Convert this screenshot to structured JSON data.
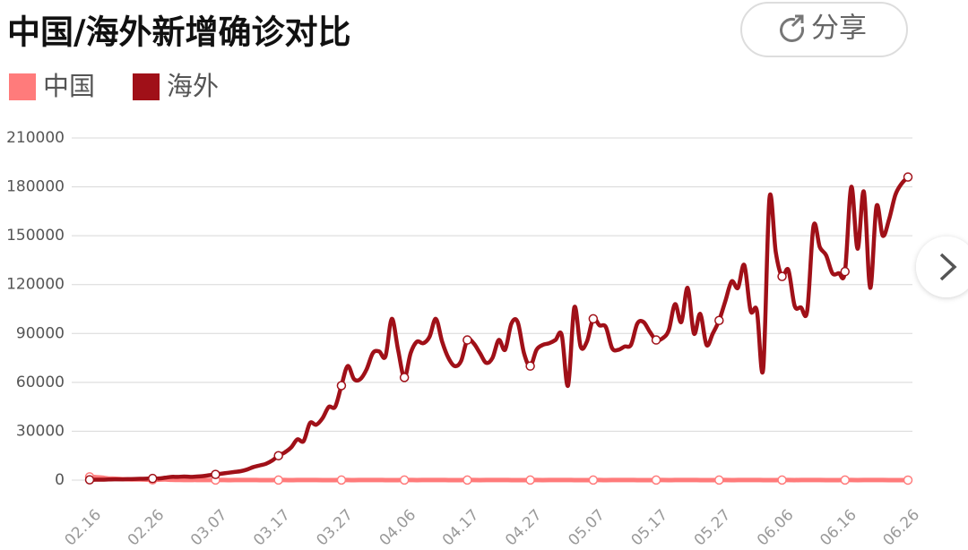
{
  "chart_data": {
    "type": "line",
    "title": "中国/海外新增确诊对比",
    "categories": [
      "02.16",
      null,
      null,
      null,
      null,
      null,
      null,
      null,
      null,
      null,
      "02.26",
      null,
      null,
      null,
      null,
      null,
      null,
      null,
      null,
      null,
      "03.07",
      null,
      null,
      null,
      null,
      null,
      null,
      null,
      null,
      null,
      "03.17",
      null,
      null,
      null,
      null,
      null,
      null,
      null,
      null,
      null,
      "03.27",
      null,
      null,
      null,
      null,
      null,
      null,
      null,
      null,
      null,
      "04.06",
      null,
      null,
      null,
      null,
      null,
      null,
      null,
      null,
      null,
      "04.17",
      null,
      null,
      null,
      null,
      null,
      null,
      null,
      null,
      null,
      "04.27",
      null,
      null,
      null,
      null,
      null,
      null,
      null,
      null,
      null,
      "05.07",
      null,
      null,
      null,
      null,
      null,
      null,
      null,
      null,
      null,
      "05.17",
      null,
      null,
      null,
      null,
      null,
      null,
      null,
      null,
      null,
      "05.27",
      null,
      null,
      null,
      null,
      null,
      null,
      null,
      null,
      null,
      "06.06",
      null,
      null,
      null,
      null,
      null,
      null,
      null,
      null,
      null,
      "06.16",
      null,
      null,
      null,
      null,
      null,
      null,
      null,
      null,
      null,
      "06.26"
    ],
    "series": [
      {
        "name": "中国",
        "color": "#ff7b7b",
        "values": [
          2000,
          1800,
          1500,
          1000,
          900,
          600,
          500,
          400,
          400,
          300,
          200,
          300,
          400,
          200,
          150,
          100,
          100,
          100,
          50,
          50,
          50,
          40,
          30,
          40,
          60,
          50,
          40,
          30,
          20,
          30,
          50,
          40,
          30,
          40,
          60,
          50,
          40,
          30,
          20,
          30,
          50,
          40,
          30,
          40,
          60,
          50,
          40,
          30,
          20,
          30,
          50,
          40,
          30,
          40,
          60,
          50,
          40,
          30,
          20,
          30,
          50,
          40,
          30,
          40,
          60,
          50,
          40,
          30,
          20,
          30,
          50,
          40,
          30,
          40,
          60,
          50,
          40,
          30,
          20,
          30,
          50,
          40,
          30,
          40,
          60,
          50,
          40,
          30,
          20,
          30,
          50,
          40,
          30,
          40,
          60,
          50,
          40,
          30,
          20,
          30,
          50,
          40,
          30,
          40,
          60,
          50,
          40,
          30,
          20,
          30,
          50,
          40,
          30,
          40,
          60,
          50,
          40,
          30,
          20,
          30,
          50,
          40,
          30,
          40,
          60,
          50,
          40,
          30,
          20,
          30,
          20
        ]
      },
      {
        "name": "海外",
        "color": "#a01018",
        "values": [
          200,
          300,
          300,
          400,
          500,
          500,
          600,
          700,
          800,
          900,
          1000,
          1000,
          1500,
          2000,
          2000,
          2200,
          2000,
          2200,
          2500,
          3000,
          3500,
          4000,
          4500,
          5000,
          5500,
          6500,
          8000,
          9000,
          10000,
          12000,
          15000,
          17000,
          20000,
          25000,
          24000,
          35000,
          34000,
          38000,
          45000,
          45000,
          58000,
          70000,
          62000,
          62000,
          68000,
          78000,
          79000,
          76000,
          99000,
          80000,
          63000,
          78000,
          85000,
          84000,
          88000,
          99000,
          85000,
          75000,
          70000,
          73000,
          86000,
          84000,
          78000,
          72000,
          75000,
          86000,
          80000,
          96000,
          97000,
          78000,
          70000,
          80000,
          83000,
          84000,
          86000,
          89000,
          58000,
          106000,
          82000,
          85000,
          99000,
          95000,
          94000,
          81000,
          80000,
          82000,
          83000,
          96000,
          97000,
          91000,
          86000,
          87000,
          92000,
          108000,
          97000,
          118000,
          90000,
          102000,
          83000,
          90000,
          98000,
          110000,
          122000,
          118000,
          132000,
          104000,
          104000,
          68000,
          173000,
          140000,
          125000,
          129000,
          107000,
          106000,
          104000,
          156000,
          143000,
          138000,
          127000,
          127000,
          128000,
          180000,
          142000,
          177000,
          118000,
          168000,
          150000,
          160000,
          175000,
          182000,
          186000
        ]
      }
    ],
    "ylim": [
      0,
      210000
    ],
    "yticks": [
      0,
      30000,
      60000,
      90000,
      120000,
      150000,
      180000,
      210000
    ],
    "grid": true
  },
  "ui": {
    "share": "分享"
  }
}
